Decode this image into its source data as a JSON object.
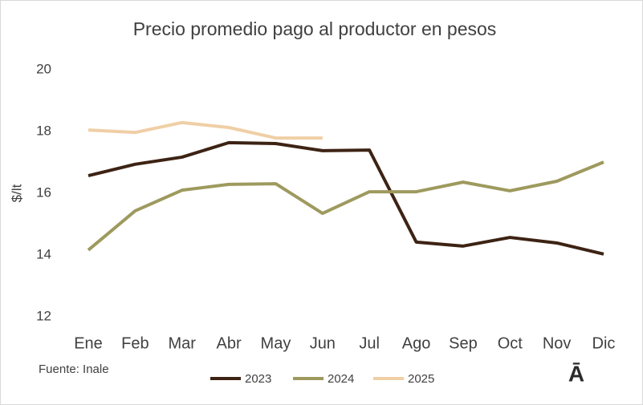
{
  "chart_data": {
    "type": "line",
    "title": "Precio promedio pago al productor en pesos",
    "y_label": "$/lt",
    "categories": [
      "Ene",
      "Feb",
      "Mar",
      "Abr",
      "May",
      "Jun",
      "Jul",
      "Ago",
      "Sep",
      "Oct",
      "Nov",
      "Dic"
    ],
    "series": [
      {
        "name": "2023",
        "color": "#3d2314",
        "values": [
          16.57,
          16.94,
          17.17,
          17.64,
          17.61,
          17.38,
          17.4,
          14.42,
          14.29,
          14.57,
          14.39,
          14.03
        ]
      },
      {
        "name": "2024",
        "color": "#9e9a5e",
        "values": [
          14.16,
          15.43,
          16.1,
          16.29,
          16.31,
          15.35,
          16.05,
          16.05,
          16.36,
          16.08,
          16.39,
          17.01
        ]
      },
      {
        "name": "2025",
        "color": "#f0cfa6",
        "values": [
          18.05,
          17.97,
          18.29,
          18.13,
          17.79,
          17.79,
          null,
          null,
          null,
          null,
          null,
          null
        ]
      }
    ],
    "ylim": [
      12,
      20
    ],
    "yticks": [
      12,
      14,
      16,
      18,
      20
    ],
    "grid": false,
    "legend": "bottom",
    "annotations": {
      "source": "Fuente: Inale",
      "logo": "Ā"
    }
  }
}
